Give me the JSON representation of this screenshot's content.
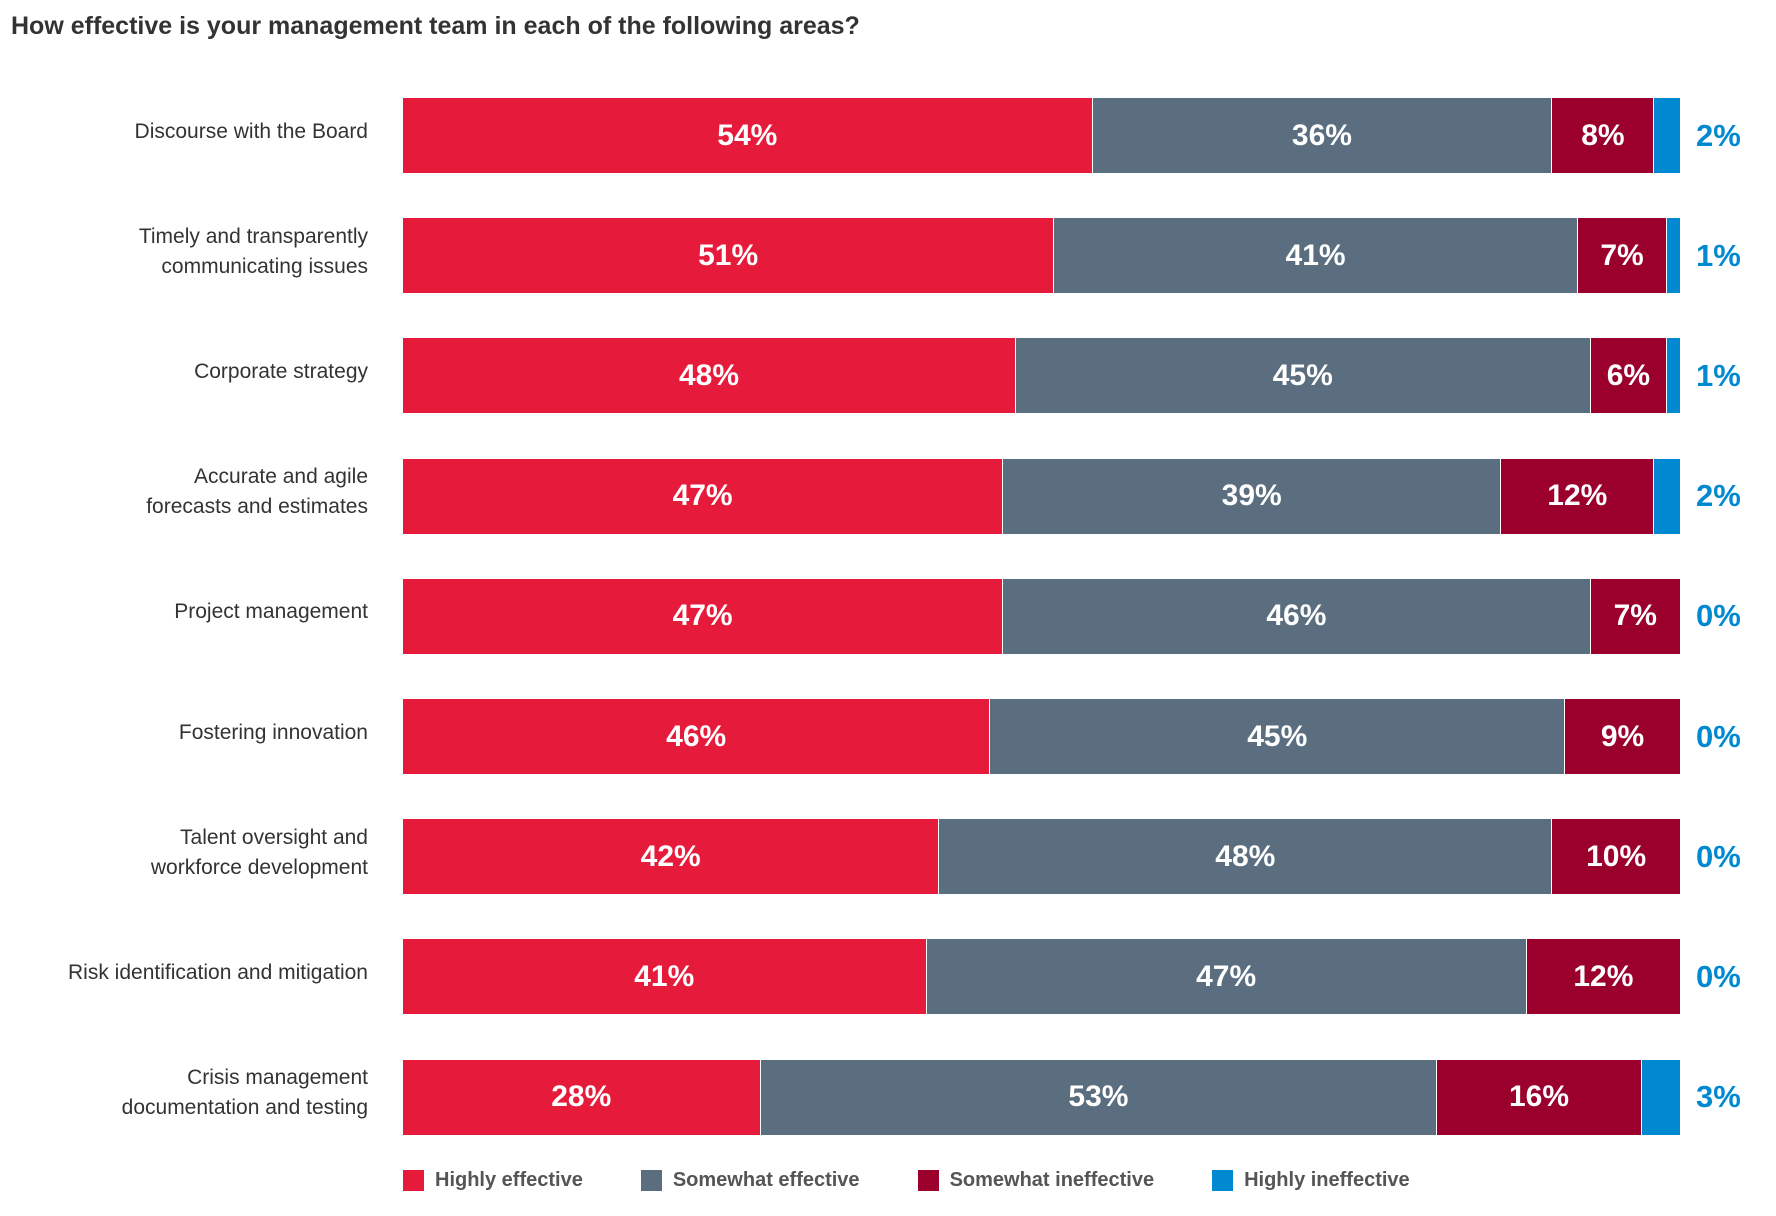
{
  "chart_data": {
    "type": "bar",
    "orientation": "horizontal",
    "stacked": true,
    "title": "How effective is your management team in each of the following areas?",
    "categories": [
      "Discourse with the Board",
      "Timely and transparently communicating issues",
      "Corporate strategy",
      "Accurate and agile forecasts and estimates",
      "Project management",
      "Fostering innovation",
      "Talent oversight and workforce development",
      "Risk identification and mitigation",
      "Crisis management documentation and testing"
    ],
    "category_lines": [
      [
        "Discourse with the Board"
      ],
      [
        "Timely and transparently",
        "communicating issues"
      ],
      [
        "Corporate strategy"
      ],
      [
        "Accurate and agile",
        "forecasts and estimates"
      ],
      [
        "Project management"
      ],
      [
        "Fostering innovation"
      ],
      [
        "Talent oversight and",
        "workforce development"
      ],
      [
        "Risk identification and mitigation"
      ],
      [
        "Crisis management",
        "documentation and testing"
      ]
    ],
    "series": [
      {
        "name": "Highly effective",
        "color": "#e61b3b",
        "values": [
          54,
          51,
          48,
          47,
          47,
          46,
          42,
          41,
          28
        ]
      },
      {
        "name": "Somewhat effective",
        "color": "#5b6e7f",
        "values": [
          36,
          41,
          45,
          39,
          46,
          45,
          48,
          47,
          53
        ]
      },
      {
        "name": "Somewhat ineffective",
        "color": "#9b002d",
        "values": [
          8,
          7,
          6,
          12,
          7,
          9,
          10,
          12,
          16
        ]
      },
      {
        "name": "Highly ineffective",
        "color": "#0088d1",
        "values": [
          2,
          1,
          1,
          2,
          0,
          0,
          0,
          0,
          3
        ]
      }
    ],
    "value_suffix": "%",
    "xlim": [
      0,
      100
    ],
    "legend_position": "bottom",
    "grid": false
  }
}
